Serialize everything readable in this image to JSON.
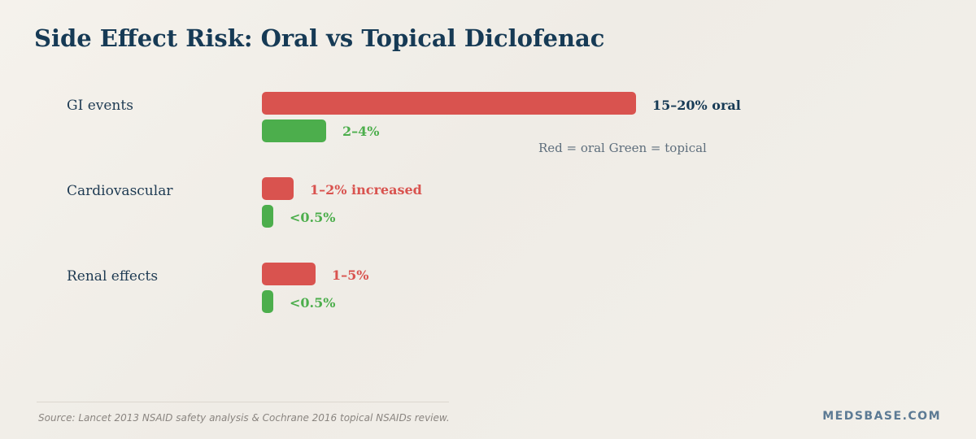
{
  "title": "Side Effect Risk: Oral vs Topical Diclofenac",
  "legend_note": "Red = oral   Green = topical",
  "source": "Source: Lancet 2013 NSAID safety analysis & Cochrane 2016 topical NSAIDs review.",
  "brand": "MEDSBASE.COM",
  "colors": {
    "oral": "#d9534f",
    "topical": "#4cae4c",
    "highlight_label": "#163a55"
  },
  "chart_data": {
    "type": "bar",
    "orientation": "horizontal",
    "title": "Side Effect Risk: Oral vs Topical Diclofenac",
    "categories": [
      "GI events",
      "Cardiovascular",
      "Renal effects"
    ],
    "series": [
      {
        "values": [
          17.5,
          1.5,
          2.5
        ],
        "labels": [
          "15–20% oral",
          "1–2% increased",
          "1–5%"
        ]
      },
      {
        "values": [
          3,
          0.25,
          0.2
        ],
        "labels": [
          "2–4%",
          "<0.5%",
          "<0.5%"
        ]
      }
    ],
    "xlim": [
      0,
      17.5
    ],
    "grid": false
  }
}
